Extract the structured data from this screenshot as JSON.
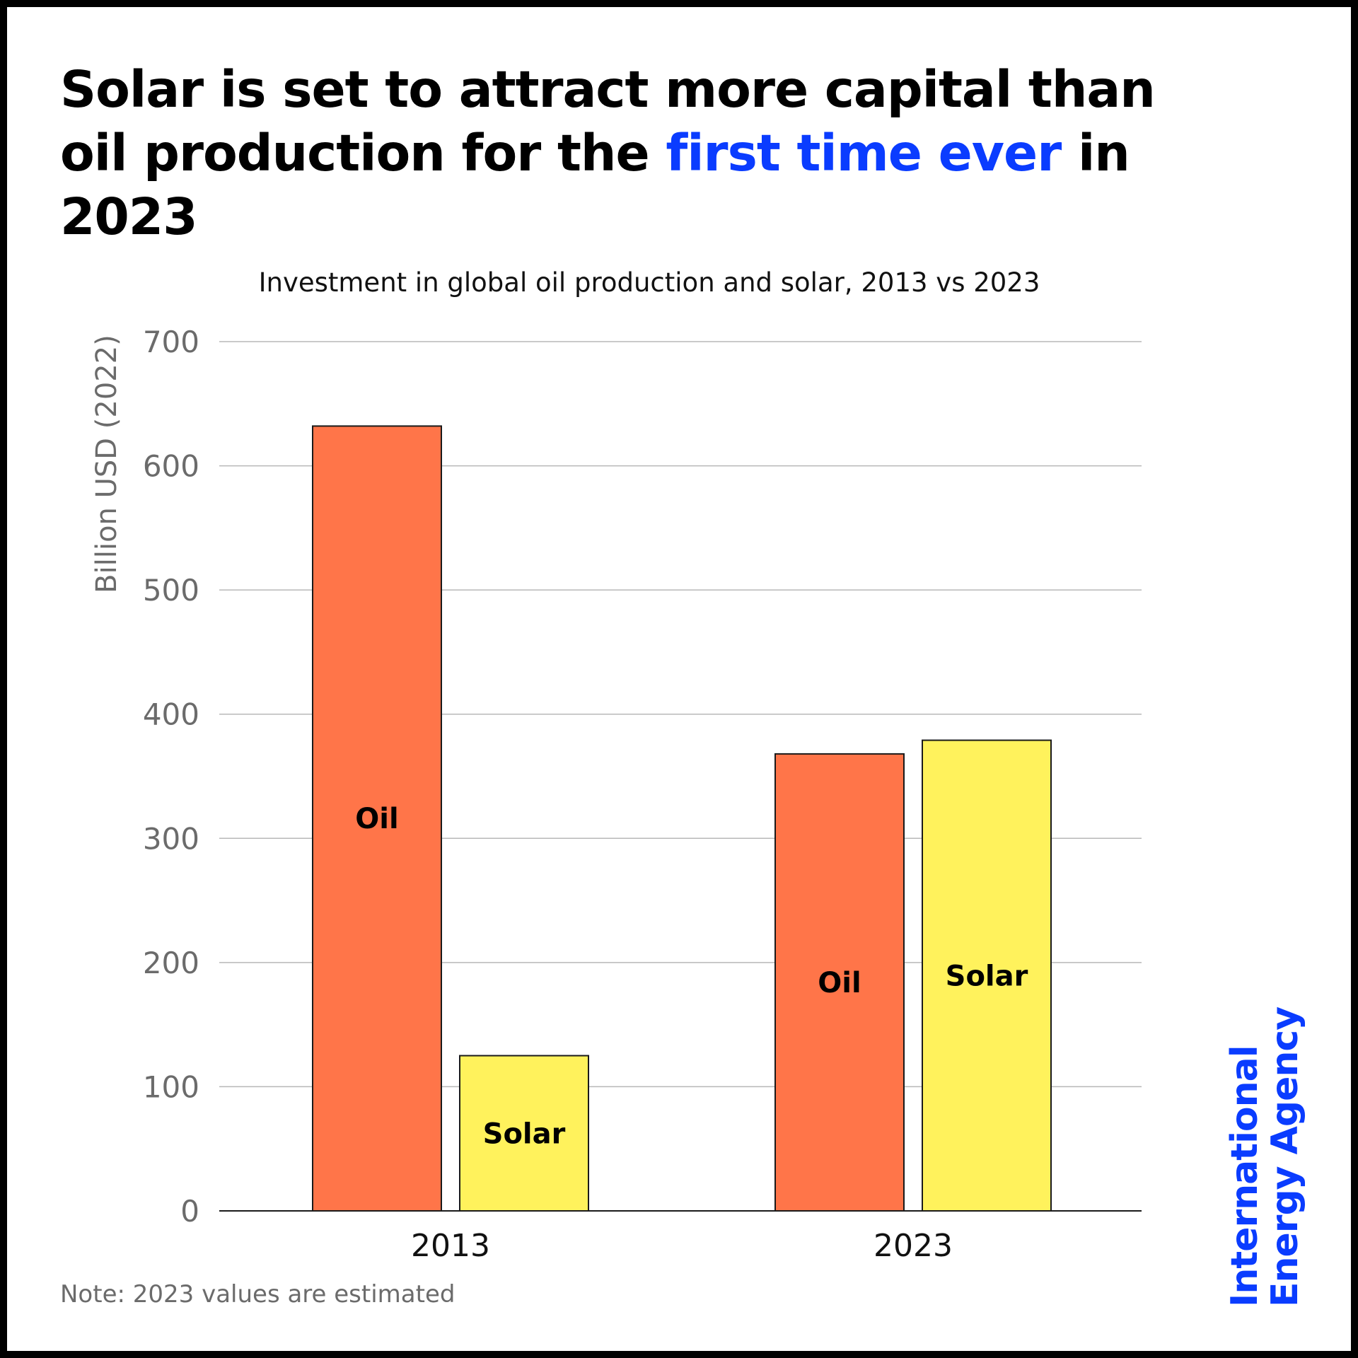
{
  "header": {
    "title_before": "Solar is set to attract more capital than oil production for the ",
    "title_highlight": "first time ever",
    "title_after": " in 2023",
    "highlight_color": "#0a3cff"
  },
  "note": "Note: 2023 values are estimated",
  "logo": {
    "line1": "International",
    "line2": "Energy Agency"
  },
  "chart_data": {
    "type": "bar",
    "title": "Investment in global oil production and solar, 2013 vs 2023",
    "xlabel": "",
    "ylabel": "Billion USD (2022)",
    "ylim": [
      0,
      700
    ],
    "yticks": [
      0,
      100,
      200,
      300,
      400,
      500,
      600,
      700
    ],
    "grid": true,
    "legend": "none (bars labelled directly)",
    "categories": [
      "2013",
      "2023"
    ],
    "series": [
      {
        "name": "Oil",
        "color": "#ff7549",
        "values": [
          632,
          368
        ]
      },
      {
        "name": "Solar",
        "color": "#fff25c",
        "values": [
          125,
          379
        ]
      }
    ]
  }
}
